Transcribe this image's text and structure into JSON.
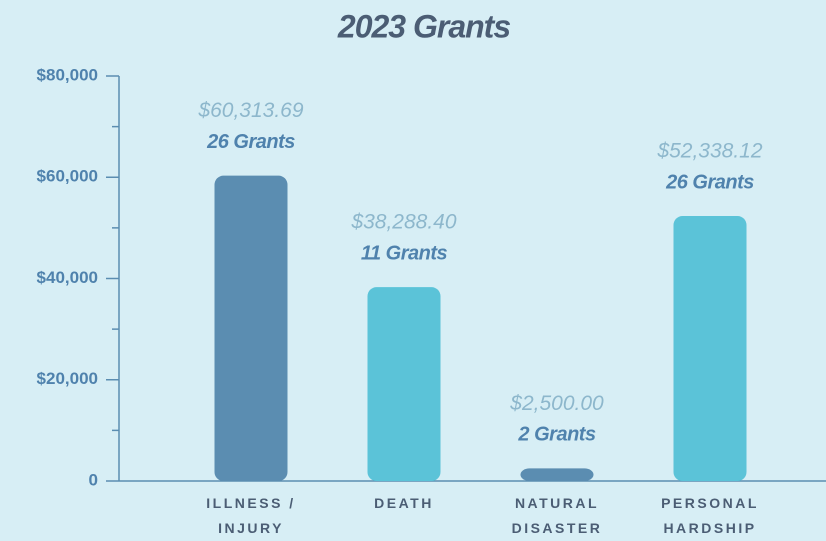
{
  "chart_data": {
    "type": "bar",
    "title": "2023 Grants",
    "categories": [
      "ILLNESS / INJURY",
      "DEATH",
      "NATURAL DISASTER",
      "PERSONAL HARDSHIP"
    ],
    "values": [
      60313.69,
      38288.4,
      2500.0,
      52338.12
    ],
    "value_labels": [
      "$60,313.69",
      "$38,288.40",
      "$2,500.00",
      "$52,338.12"
    ],
    "grants": {
      "values": [
        26,
        11,
        2,
        26
      ],
      "value_labels": [
        "26 Grants",
        "11 Grants",
        "2 Grants",
        "26 Grants"
      ]
    },
    "colors": [
      "#5b8db1",
      "#5bc3d8",
      "#5b8db1",
      "#5bc3d8"
    ],
    "ylim": [
      0,
      80000
    ],
    "yticks": [
      0,
      {
        "value": 20000,
        "label": "$20,000"
      },
      {
        "value": 40000,
        "label": "$40,000"
      },
      {
        "value": 60000,
        "label": "$60,000"
      },
      {
        "value": 80000,
        "label": "$80,000"
      }
    ],
    "minor_yticks": [
      10000,
      30000,
      50000,
      70000
    ]
  }
}
